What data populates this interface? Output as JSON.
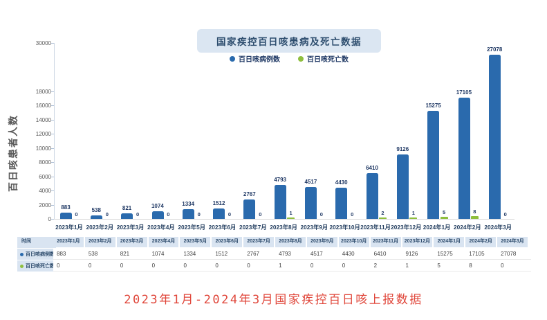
{
  "page": {
    "title": "国家疾控百日咳患病及死亡数据",
    "y_axis_title": "百日咳患者人数",
    "caption": "2023年1月-2024年3月国家疾控百日咳上报数据"
  },
  "table": {
    "time_header": "时间"
  },
  "colors": {
    "cases_bar": "#2a6aad",
    "deaths_bar": "#8fbf3e",
    "title_bg": "#dbe6f2",
    "title_text": "#2d4d6e",
    "table_header_bg": "#d9e4f1",
    "caption_text": "#e0473b"
  },
  "chart_data": {
    "type": "bar",
    "title": "国家疾控百日咳患病及死亡数据",
    "categories": [
      "2023年1月",
      "2023年2月",
      "2023年3月",
      "2023年4月",
      "2023年5月",
      "2023年6月",
      "2023年7月",
      "2023年8月",
      "2023年9月",
      "2023年10月",
      "2023年11月",
      "2023年12月",
      "2024年1月",
      "2024年2月",
      "2024年3月"
    ],
    "series": [
      {
        "name": "百日咳病例数",
        "color": "#2a6aad",
        "values": [
          883,
          538,
          821,
          1074,
          1334,
          1512,
          2767,
          4793,
          4517,
          4430,
          6410,
          9126,
          15275,
          17105,
          27078
        ]
      },
      {
        "name": "百日咳死亡数",
        "color": "#8fbf3e",
        "values": [
          0,
          0,
          0,
          0,
          0,
          0,
          0,
          1,
          0,
          0,
          2,
          1,
          5,
          8,
          0
        ]
      }
    ],
    "xlabel": "",
    "ylabel": "百日咳患者人数",
    "y_ticks": [
      0,
      2000,
      4000,
      6000,
      8000,
      10000,
      12000,
      14000,
      16000,
      18000,
      30000
    ],
    "ylim": [
      0,
      30000
    ],
    "axis_break_between": [
      18000,
      30000
    ],
    "grid": false,
    "legend_position": "top",
    "data_labels": true
  }
}
